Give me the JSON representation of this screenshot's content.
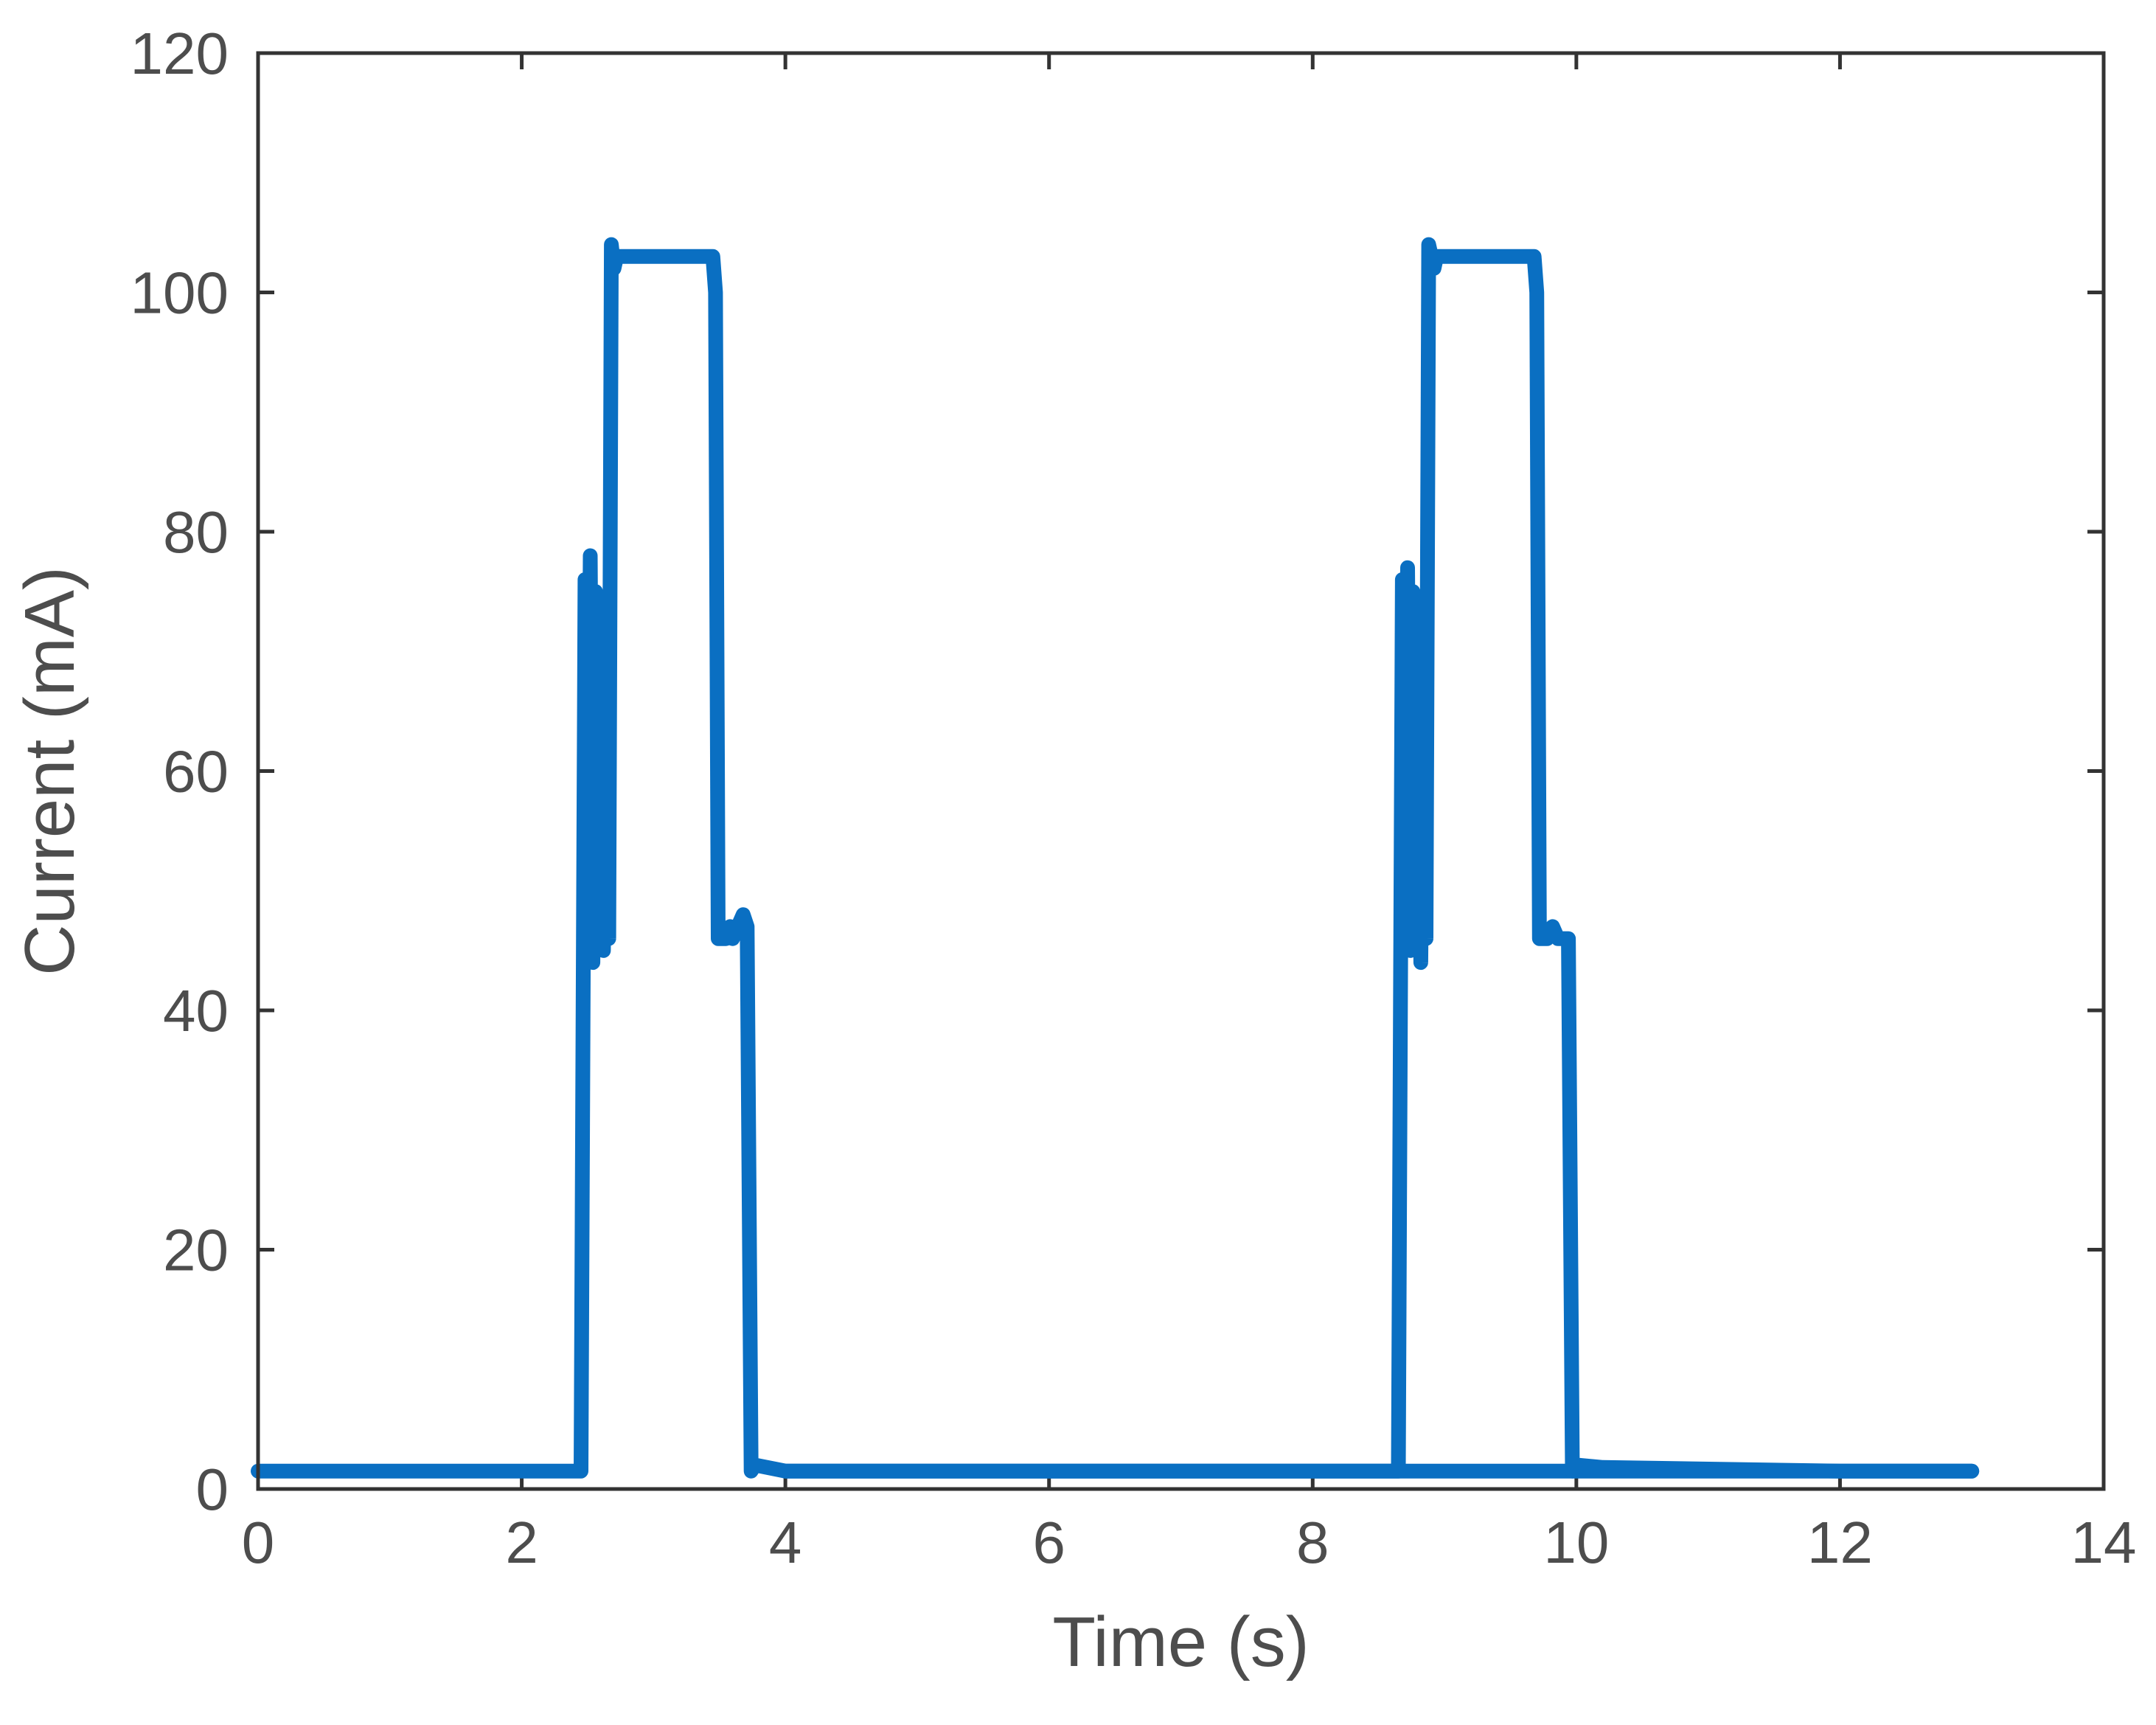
{
  "chart_data": {
    "type": "line",
    "title": "",
    "xlabel": "Time (s)",
    "ylabel": "Current (mA)",
    "xlim": [
      0,
      14
    ],
    "ylim": [
      0,
      120
    ],
    "xticks": [
      0,
      2,
      4,
      6,
      8,
      10,
      12,
      14
    ],
    "yticks": [
      0,
      20,
      40,
      60,
      80,
      100,
      120
    ],
    "xtick_labels": [
      "0",
      "2",
      "4",
      "6",
      "8",
      "10",
      "12",
      "14"
    ],
    "ytick_labels": [
      "0",
      "20",
      "40",
      "60",
      "80",
      "100",
      "120"
    ],
    "grid": false,
    "legend": "none",
    "colors": {
      "line": "#0a6fc2",
      "axes": "#333333",
      "text": "#4d4d4d"
    },
    "series": [
      {
        "x": [
          0,
          2.45,
          2.48,
          2.5,
          2.52,
          2.54,
          2.56,
          2.58,
          2.6,
          2.62,
          2.64,
          2.66,
          2.68,
          2.7,
          2.72,
          2.74,
          3.45,
          3.47,
          3.49,
          3.55,
          3.58,
          3.6,
          3.68,
          3.71,
          3.74,
          3.77,
          4.0,
          12.0,
          13.0
        ],
        "y": [
          1.5,
          1.5,
          76,
          46,
          78,
          44,
          75,
          46,
          64,
          45,
          65,
          46,
          104,
          102,
          103,
          103,
          103,
          100,
          46,
          46,
          47,
          46,
          48,
          47,
          1.5,
          2,
          1.5,
          1.5,
          1.5
        ]
      },
      {
        "x": [
          4.0,
          8.65,
          8.68,
          8.7,
          8.72,
          8.74,
          8.76,
          8.78,
          8.8,
          8.82,
          8.84,
          8.86,
          8.88,
          8.9,
          8.92,
          8.94,
          9.68,
          9.7,
          9.72,
          9.78,
          9.82,
          9.86,
          9.9,
          9.94,
          9.97,
          10.0,
          10.2,
          12.0,
          13.0
        ],
        "y": [
          1.5,
          1.5,
          76,
          46,
          77,
          45,
          75,
          46,
          64,
          44,
          66,
          46,
          104,
          103,
          102,
          103,
          103,
          100,
          46,
          46,
          47,
          46,
          46,
          46,
          1.5,
          2,
          1.8,
          1.5,
          1.5
        ]
      }
    ]
  }
}
